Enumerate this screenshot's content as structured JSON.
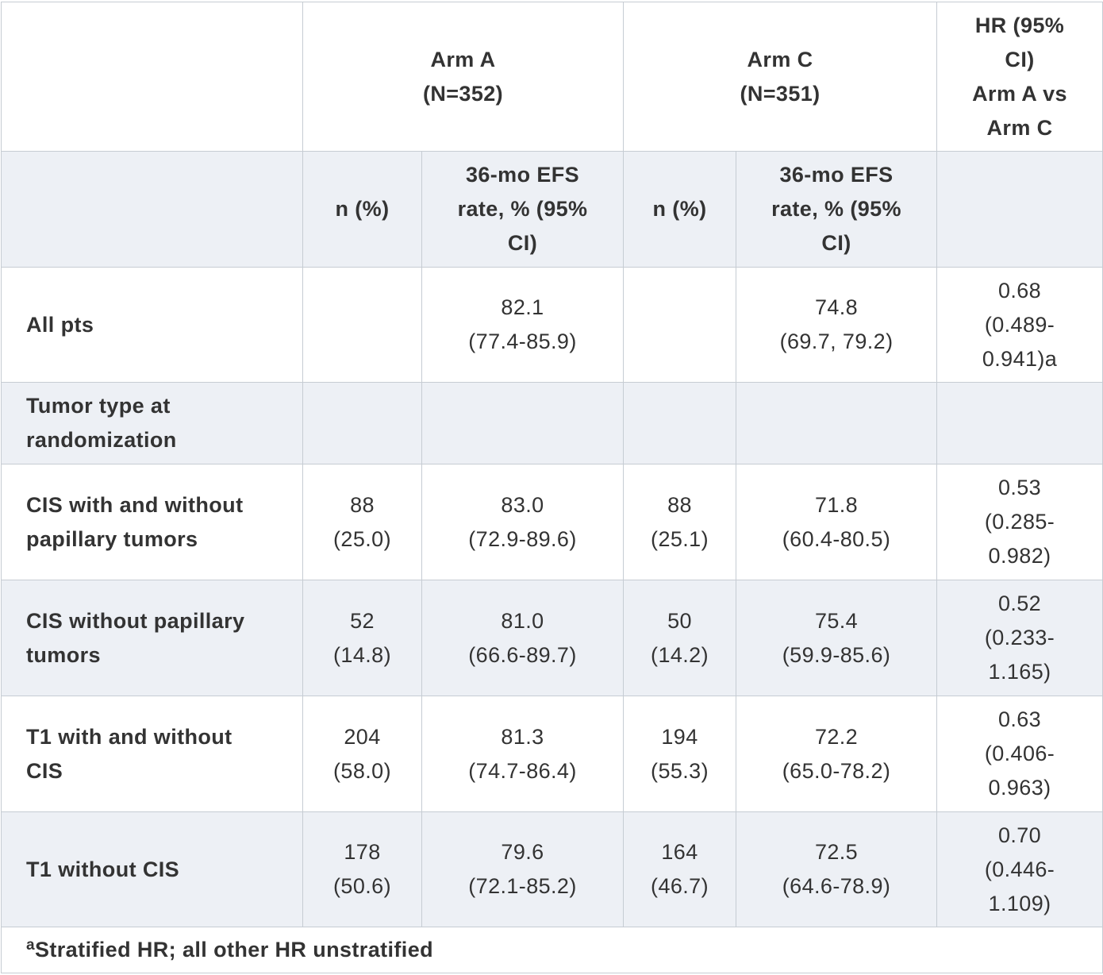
{
  "header": {
    "arm_a": {
      "name": "Arm A",
      "n": "(N=352)"
    },
    "arm_c": {
      "name": "Arm C",
      "n": "(N=351)"
    },
    "hr": {
      "line1": "HR (95%",
      "line2": "CI)",
      "line3": "Arm A vs",
      "line4": "Arm C"
    }
  },
  "subheader": {
    "n_pct": "n (%)",
    "efs_line1": "36-mo EFS",
    "efs_line2": "rate, % (95%",
    "efs_line3": "CI)"
  },
  "rows": [
    {
      "label": [
        "All pts"
      ],
      "a_n": [
        "",
        ""
      ],
      "a_efs": [
        "82.1",
        "(77.4-85.9)"
      ],
      "c_n": [
        "",
        ""
      ],
      "c_efs": [
        "74.8",
        "(69.7, 79.2)"
      ],
      "hr": [
        "0.68",
        "(0.489-",
        "0.941)a"
      ]
    },
    {
      "label": [
        "Tumor type at",
        "randomization"
      ]
    },
    {
      "label": [
        "CIS with and without",
        "papillary tumors"
      ],
      "a_n": [
        "88",
        "(25.0)"
      ],
      "a_efs": [
        "83.0",
        "(72.9-89.6)"
      ],
      "c_n": [
        "88",
        "(25.1)"
      ],
      "c_efs": [
        "71.8",
        "(60.4-80.5)"
      ],
      "hr": [
        "0.53",
        "(0.285-",
        "0.982)"
      ]
    },
    {
      "label": [
        "CIS without papillary",
        "tumors"
      ],
      "a_n": [
        "52",
        "(14.8)"
      ],
      "a_efs": [
        "81.0",
        "(66.6-89.7)"
      ],
      "c_n": [
        "50",
        "(14.2)"
      ],
      "c_efs": [
        "75.4",
        "(59.9-85.6)"
      ],
      "hr": [
        "0.52",
        "(0.233-",
        "1.165)"
      ]
    },
    {
      "label": [
        "T1 with and without",
        "CIS"
      ],
      "a_n": [
        "204",
        "(58.0)"
      ],
      "a_efs": [
        "81.3",
        "(74.7-86.4)"
      ],
      "c_n": [
        "194",
        "(55.3)"
      ],
      "c_efs": [
        "72.2",
        "(65.0-78.2)"
      ],
      "hr": [
        "0.63",
        "(0.406-",
        "0.963)"
      ]
    },
    {
      "label": [
        "T1 without CIS"
      ],
      "a_n": [
        "178",
        "(50.6)"
      ],
      "a_efs": [
        "79.6",
        "(72.1-85.2)"
      ],
      "c_n": [
        "164",
        "(46.7)"
      ],
      "c_efs": [
        "72.5",
        "(64.6-78.9)"
      ],
      "hr": [
        "0.70",
        "(0.446-",
        "1.109)"
      ]
    }
  ],
  "footnote": {
    "sup": "a",
    "text": "Stratified HR; all other HR unstratified"
  }
}
